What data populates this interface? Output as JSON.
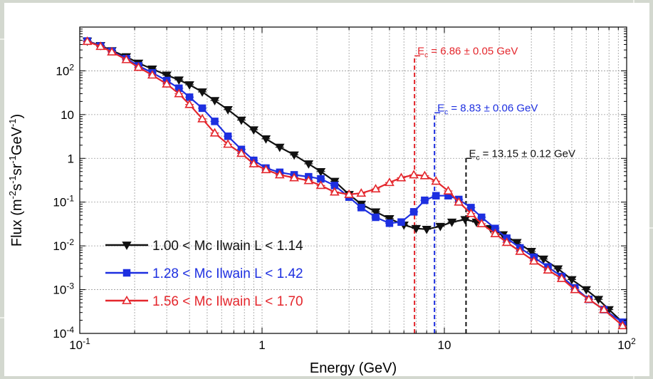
{
  "chart_data": {
    "type": "line",
    "xlabel": "Energy (GeV)",
    "ylabel_parts": [
      "Flux (m",
      "-2",
      "s",
      "-1",
      "sr",
      "-1",
      "GeV",
      "-1",
      ")"
    ],
    "xscale": "log",
    "yscale": "log",
    "xlim": [
      0.1,
      100
    ],
    "ylim": [
      0.0001,
      1000
    ],
    "grid": true,
    "legend_position": "bottom-left",
    "x_ticks": [
      {
        "value": 0.1,
        "base": "10",
        "exp": "-1"
      },
      {
        "value": 1,
        "base": "1",
        "exp": ""
      },
      {
        "value": 10,
        "base": "10",
        "exp": ""
      },
      {
        "value": 100,
        "base": "10",
        "exp": "2"
      }
    ],
    "y_ticks": [
      {
        "value": 0.0001,
        "base": "10",
        "exp": "-4"
      },
      {
        "value": 0.001,
        "base": "10",
        "exp": "-3"
      },
      {
        "value": 0.01,
        "base": "10",
        "exp": "-2"
      },
      {
        "value": 0.1,
        "base": "10",
        "exp": "-1"
      },
      {
        "value": 1,
        "base": "1",
        "exp": ""
      },
      {
        "value": 10,
        "base": "10",
        "exp": ""
      },
      {
        "value": 100,
        "base": "10",
        "exp": "2"
      }
    ],
    "cutoffs": [
      {
        "value": 6.86,
        "y_top": 220,
        "label_e": "E",
        "label_sub": "c",
        "label_rest": " = 6.86 ± 0.05 GeV",
        "color": "#e4262c"
      },
      {
        "value": 8.83,
        "y_top": 11,
        "label_e": "E",
        "label_sub": "c",
        "label_rest": " = 8.83 ± 0.06 GeV",
        "color": "#1d2fe0"
      },
      {
        "value": 13.15,
        "y_top": 1.0,
        "label_e": "E",
        "label_sub": "c",
        "label_rest": " = 13.15 ± 0.12 GeV",
        "color": "#111111"
      }
    ],
    "series": [
      {
        "name": "1.00 < Mc Ilwain L < 1.14",
        "color": "#111111",
        "marker": "triangle-down",
        "filled": true,
        "x": [
          0.11,
          0.13,
          0.15,
          0.18,
          0.21,
          0.25,
          0.3,
          0.35,
          0.4,
          0.47,
          0.55,
          0.65,
          0.77,
          0.9,
          1.05,
          1.25,
          1.5,
          1.8,
          2.1,
          2.5,
          3,
          3.5,
          4.2,
          5,
          6,
          7,
          8,
          9.5,
          11,
          13,
          15,
          18,
          21,
          25,
          30,
          35,
          42,
          50,
          60,
          70,
          80,
          95
        ],
        "y": [
          480,
          380,
          290,
          210,
          150,
          110,
          80,
          62,
          48,
          33,
          21,
          13,
          7.5,
          4.5,
          2.8,
          1.8,
          1.2,
          0.75,
          0.5,
          0.3,
          0.15,
          0.09,
          0.06,
          0.042,
          0.03,
          0.025,
          0.024,
          0.028,
          0.035,
          0.04,
          0.035,
          0.025,
          0.018,
          0.012,
          0.0075,
          0.005,
          0.003,
          0.0017,
          0.001,
          0.0006,
          0.00035,
          0.00018
        ]
      },
      {
        "name": "1.28 < Mc Ilwain L < 1.42",
        "color": "#1d2fe0",
        "marker": "square",
        "filled": true,
        "x": [
          0.11,
          0.13,
          0.15,
          0.18,
          0.21,
          0.25,
          0.3,
          0.35,
          0.4,
          0.47,
          0.55,
          0.65,
          0.77,
          0.9,
          1.05,
          1.25,
          1.5,
          1.8,
          2.1,
          2.5,
          3,
          3.5,
          4.2,
          5,
          5.8,
          6.8,
          7.8,
          9,
          10.5,
          12,
          14,
          16,
          19,
          22,
          26,
          31,
          37,
          44,
          52,
          62,
          75,
          95
        ],
        "y": [
          480,
          370,
          280,
          190,
          130,
          90,
          60,
          40,
          25,
          14,
          7,
          3.2,
          1.6,
          0.9,
          0.6,
          0.48,
          0.42,
          0.38,
          0.34,
          0.24,
          0.13,
          0.075,
          0.045,
          0.033,
          0.035,
          0.06,
          0.11,
          0.14,
          0.14,
          0.115,
          0.075,
          0.045,
          0.025,
          0.015,
          0.009,
          0.0055,
          0.0033,
          0.002,
          0.0011,
          0.0006,
          0.00035,
          0.00018
        ]
      },
      {
        "name": "1.56 < Mc Ilwain L < 1.70",
        "color": "#e4262c",
        "marker": "triangle-up",
        "filled": false,
        "x": [
          0.11,
          0.13,
          0.15,
          0.18,
          0.21,
          0.25,
          0.3,
          0.35,
          0.4,
          0.47,
          0.55,
          0.65,
          0.77,
          0.9,
          1.05,
          1.25,
          1.5,
          1.8,
          2.1,
          2.5,
          3,
          3.5,
          4.2,
          5,
          5.8,
          6.8,
          7.8,
          9,
          10.5,
          12,
          14,
          16,
          19,
          22,
          26,
          31,
          37,
          44,
          52,
          62,
          75,
          95
        ],
        "y": [
          470,
          360,
          270,
          180,
          120,
          80,
          50,
          30,
          17,
          8,
          3.8,
          2.1,
          1.3,
          0.75,
          0.55,
          0.42,
          0.36,
          0.31,
          0.24,
          0.17,
          0.15,
          0.16,
          0.2,
          0.28,
          0.36,
          0.42,
          0.4,
          0.3,
          0.18,
          0.1,
          0.055,
          0.032,
          0.019,
          0.012,
          0.0075,
          0.0045,
          0.0028,
          0.0018,
          0.001,
          0.0006,
          0.00035,
          0.00015
        ]
      }
    ]
  }
}
